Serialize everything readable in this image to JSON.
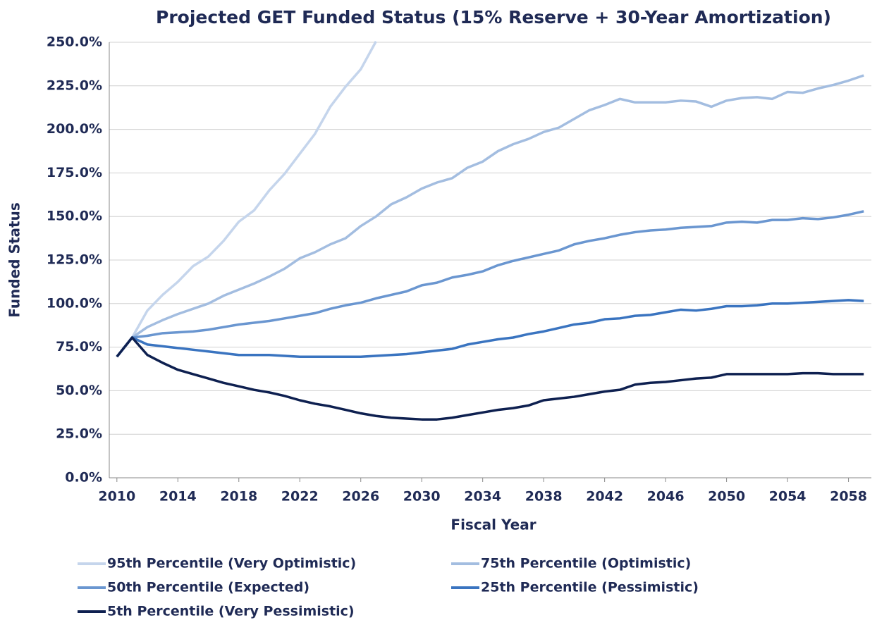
{
  "chart_data": {
    "type": "line",
    "title": "Projected GET Funded Status (15% Reserve + 30-Year Amortization)",
    "x_label": "Fiscal Year",
    "y_label": "Funded Status",
    "x": [
      2010,
      2011,
      2012,
      2013,
      2014,
      2015,
      2016,
      2017,
      2018,
      2019,
      2020,
      2021,
      2022,
      2023,
      2024,
      2025,
      2026,
      2027,
      2028,
      2029,
      2030,
      2031,
      2032,
      2033,
      2034,
      2035,
      2036,
      2037,
      2038,
      2039,
      2040,
      2041,
      2042,
      2043,
      2044,
      2045,
      2046,
      2047,
      2048,
      2049,
      2050,
      2051,
      2052,
      2053,
      2054,
      2055,
      2056,
      2057,
      2058,
      2059
    ],
    "xlim": [
      2009.5,
      2059.5
    ],
    "xticks": [
      2010,
      2014,
      2018,
      2022,
      2026,
      2030,
      2034,
      2038,
      2042,
      2046,
      2050,
      2054,
      2058
    ],
    "ylim": [
      0,
      250
    ],
    "yticks": [
      {
        "value": 0,
        "label": "0.0%"
      },
      {
        "value": 25,
        "label": "25.0%"
      },
      {
        "value": 50,
        "label": "50.0%"
      },
      {
        "value": 75,
        "label": "75.0%"
      },
      {
        "value": 100,
        "label": "100.0%"
      },
      {
        "value": 125,
        "label": "125.0%"
      },
      {
        "value": 150,
        "label": "150.0%"
      },
      {
        "value": 175,
        "label": "175.0%"
      },
      {
        "value": 200,
        "label": "200.0%"
      },
      {
        "value": 225,
        "label": "225.0%"
      },
      {
        "value": 250,
        "label": "250.0%"
      }
    ],
    "grid": true,
    "legend": "bottom",
    "series": [
      {
        "name": "95th Percentile (Very Optimistic)",
        "color": "#c5d5ec",
        "values": [
          69.5,
          80.5,
          96,
          105,
          112.5,
          121.5,
          127,
          136,
          147,
          153.5,
          165,
          174.5,
          186,
          197.5,
          213,
          224.5,
          234.5,
          250.5,
          null,
          null,
          null,
          null,
          null,
          null,
          null,
          null,
          null,
          null,
          null,
          null,
          null,
          null,
          null,
          null,
          null,
          null,
          null,
          null,
          null,
          null,
          null,
          null,
          null,
          null,
          null,
          null,
          null,
          null,
          null,
          null
        ]
      },
      {
        "name": "75th Percentile (Optimistic)",
        "color": "#a3bde0",
        "values": [
          69.5,
          80.5,
          86.5,
          90.5,
          94,
          97,
          100,
          104.5,
          108,
          111.5,
          115.5,
          120,
          126,
          129.5,
          134,
          137.5,
          144.5,
          150,
          157,
          161,
          166,
          169.5,
          172,
          178,
          181.5,
          187.5,
          191.5,
          194.5,
          198.5,
          201,
          206,
          211,
          214,
          217.5,
          215.5,
          215.5,
          215.5,
          216.5,
          216,
          213,
          216.5,
          218,
          218.5,
          217.5,
          221.5,
          221,
          223.5,
          225.5,
          228,
          231
        ]
      },
      {
        "name": "50th Percentile (Expected)",
        "color": "#6a96d0",
        "values": [
          69.5,
          80.5,
          81.5,
          83,
          83.5,
          84,
          85,
          86.5,
          88,
          89,
          90,
          91.5,
          93,
          94.5,
          97,
          99,
          100.5,
          103,
          105,
          107,
          110.5,
          112,
          115,
          116.5,
          118.5,
          122,
          124.5,
          126.5,
          128.5,
          130.5,
          134,
          136,
          137.5,
          139.5,
          141,
          142,
          142.5,
          143.5,
          144,
          144.5,
          146.5,
          147,
          146.5,
          148,
          148,
          149,
          148.5,
          149.5,
          151,
          153
        ]
      },
      {
        "name": "25th Percentile (Pessimistic)",
        "color": "#3a74c0",
        "values": [
          69.5,
          80.5,
          76.5,
          75.5,
          74.5,
          73.5,
          72.5,
          71.5,
          70.5,
          70.5,
          70.5,
          70,
          69.5,
          69.5,
          69.5,
          69.5,
          69.5,
          70,
          70.5,
          71,
          72,
          73,
          74,
          76.5,
          78,
          79.5,
          80.5,
          82.5,
          84,
          86,
          88,
          89,
          91,
          91.5,
          93,
          93.5,
          95,
          96.5,
          96,
          97,
          98.5,
          98.5,
          99,
          100,
          100,
          100.5,
          101,
          101.5,
          102,
          101.5
        ]
      },
      {
        "name": "5th Percentile (Very Pessimistic)",
        "color": "#0e2050",
        "values": [
          69.5,
          80.5,
          70.5,
          66,
          62,
          59.5,
          57,
          54.5,
          52.5,
          50.5,
          49,
          47,
          44.5,
          42.5,
          41,
          39,
          37,
          35.5,
          34.5,
          34,
          33.5,
          33.5,
          34.5,
          36,
          37.5,
          39,
          40,
          41.5,
          44.5,
          45.5,
          46.5,
          48,
          49.5,
          50.5,
          53.5,
          54.5,
          55,
          56,
          57,
          57.5,
          59.5,
          59.5,
          59.5,
          59.5,
          59.5,
          60,
          60,
          59.5,
          59.5,
          59.5
        ]
      }
    ]
  }
}
